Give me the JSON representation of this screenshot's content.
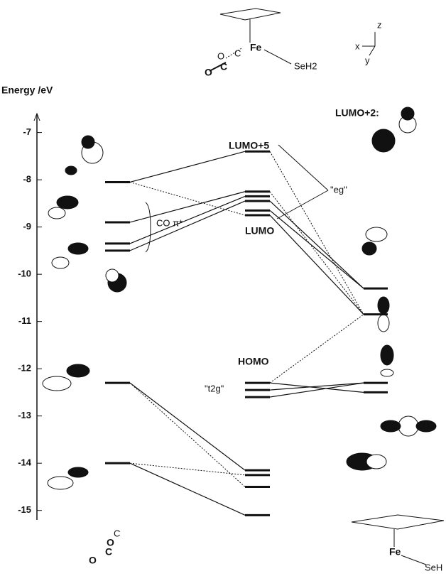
{
  "axis": {
    "label": "Energy /eV",
    "ylim": [
      -6.6,
      -15.2
    ],
    "ticks": [
      -7,
      -8,
      -9,
      -10,
      -11,
      -12,
      -13,
      -14,
      -15
    ]
  },
  "levels": {
    "co": [
      -8.05,
      -8.9,
      -9.35,
      -9.5,
      -12.3,
      -14.0
    ],
    "complex": [
      -7.4,
      -8.25,
      -8.35,
      -8.45,
      -8.65,
      -8.75,
      -12.3,
      -12.45,
      -12.6,
      -14.15,
      -14.25,
      -14.5,
      -15.1
    ],
    "fragment": [
      -10.3,
      -10.85,
      -12.3,
      -12.5
    ]
  },
  "labels": {
    "lumo5": "LUMO+5",
    "lumo": "LUMO",
    "homo": "HOMO",
    "eg": "\"eg\"",
    "t2g": "\"t2g\"",
    "co_pi": "CO π*",
    "lumo2": "LUMO+2:"
  },
  "top_molecule": {
    "metal": "Fe",
    "ligand": "SeH2",
    "o": "O",
    "c": "C",
    "c2": "C",
    "o2": "O"
  },
  "axes_icon": {
    "x": "x",
    "y": "y",
    "z": "z"
  },
  "bottom_left": {
    "o": "O",
    "c": "C",
    "c2": "C",
    "o2": "O"
  },
  "bottom_right": {
    "metal": "Fe",
    "ligand": "SeH"
  }
}
